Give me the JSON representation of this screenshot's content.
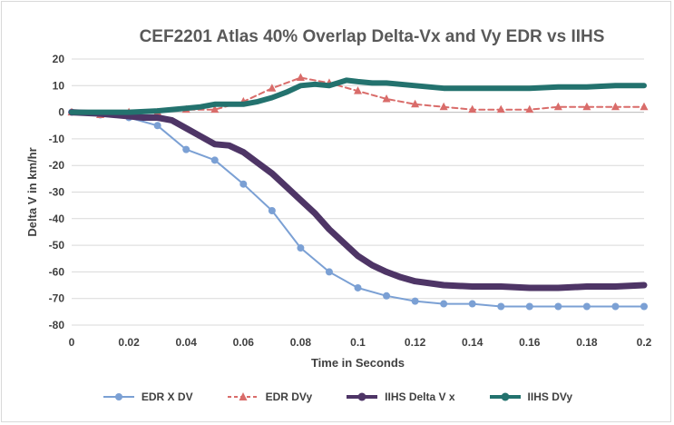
{
  "chart_data": {
    "type": "line",
    "title": "CEF2201 Atlas 40% Overlap Delta-Vx and Vy EDR vs IIHS",
    "xlabel": "Time in Seconds",
    "ylabel": "Delta V in km/hr",
    "xlim": [
      0,
      0.2
    ],
    "ylim": [
      -80,
      20
    ],
    "x_ticks": [
      "0",
      "0.02",
      "0.04",
      "0.06",
      "0.08",
      "0.1",
      "0.12",
      "0.14",
      "0.16",
      "0.18",
      "0.2"
    ],
    "y_ticks": [
      "20",
      "10",
      "0",
      "-10",
      "-20",
      "-30",
      "-40",
      "-50",
      "-60",
      "-70",
      "-80"
    ],
    "grid": "horizontal",
    "legend_position": "bottom",
    "series": [
      {
        "name": "EDR X DV",
        "color": "#7ba0d4",
        "marker": "circle",
        "style": "solid",
        "x": [
          0,
          0.01,
          0.02,
          0.03,
          0.04,
          0.05,
          0.06,
          0.07,
          0.08,
          0.09,
          0.1,
          0.11,
          0.12,
          0.13,
          0.14,
          0.15,
          0.16,
          0.17,
          0.18,
          0.19,
          0.2
        ],
        "values": [
          0,
          -1,
          -2,
          -5,
          -14,
          -18,
          -27,
          -37,
          -51,
          -60,
          -66,
          -69,
          -71,
          -72,
          -72,
          -73,
          -73,
          -73,
          -73,
          -73,
          -73
        ]
      },
      {
        "name": "EDR DVy",
        "color": "#d96c6a",
        "marker": "triangle",
        "style": "dashed",
        "x": [
          0,
          0.01,
          0.02,
          0.03,
          0.04,
          0.05,
          0.06,
          0.07,
          0.08,
          0.09,
          0.1,
          0.11,
          0.12,
          0.13,
          0.14,
          0.15,
          0.16,
          0.17,
          0.18,
          0.19,
          0.2
        ],
        "values": [
          0,
          -1,
          0,
          0,
          1,
          1,
          4,
          9,
          13,
          11,
          8,
          5,
          3,
          2,
          1,
          1,
          1,
          2,
          2,
          2,
          2
        ]
      },
      {
        "name": "IIHS Delta V x",
        "color": "#4e3566",
        "marker": "none",
        "style": "solid",
        "x": [
          0,
          0.01,
          0.02,
          0.025,
          0.03,
          0.035,
          0.04,
          0.045,
          0.05,
          0.055,
          0.06,
          0.065,
          0.07,
          0.075,
          0.08,
          0.085,
          0.09,
          0.095,
          0.1,
          0.105,
          0.11,
          0.115,
          0.12,
          0.13,
          0.14,
          0.15,
          0.16,
          0.17,
          0.18,
          0.19,
          0.2
        ],
        "values": [
          0,
          -0.5,
          -1.5,
          -2,
          -2,
          -3,
          -6,
          -9,
          -12,
          -12.5,
          -15,
          -19,
          -23,
          -28,
          -33,
          -38,
          -44,
          -49,
          -54,
          -57.5,
          -60,
          -62,
          -63.5,
          -65,
          -65.5,
          -65.5,
          -66,
          -66,
          -65.5,
          -65.5,
          -65
        ]
      },
      {
        "name": "IIHS DVy",
        "color": "#23726e",
        "marker": "none",
        "style": "solid",
        "x": [
          0,
          0.01,
          0.02,
          0.03,
          0.04,
          0.045,
          0.05,
          0.055,
          0.06,
          0.065,
          0.07,
          0.075,
          0.08,
          0.085,
          0.09,
          0.093,
          0.096,
          0.1,
          0.105,
          0.11,
          0.12,
          0.13,
          0.14,
          0.15,
          0.16,
          0.17,
          0.18,
          0.19,
          0.2
        ],
        "values": [
          0,
          0,
          0,
          0.5,
          1.5,
          2,
          3,
          3,
          3,
          4,
          5.5,
          7.5,
          10,
          10.5,
          10,
          11,
          12,
          11.5,
          11,
          11,
          10,
          9,
          9,
          9,
          9,
          9.5,
          9.5,
          10,
          10
        ]
      }
    ]
  }
}
